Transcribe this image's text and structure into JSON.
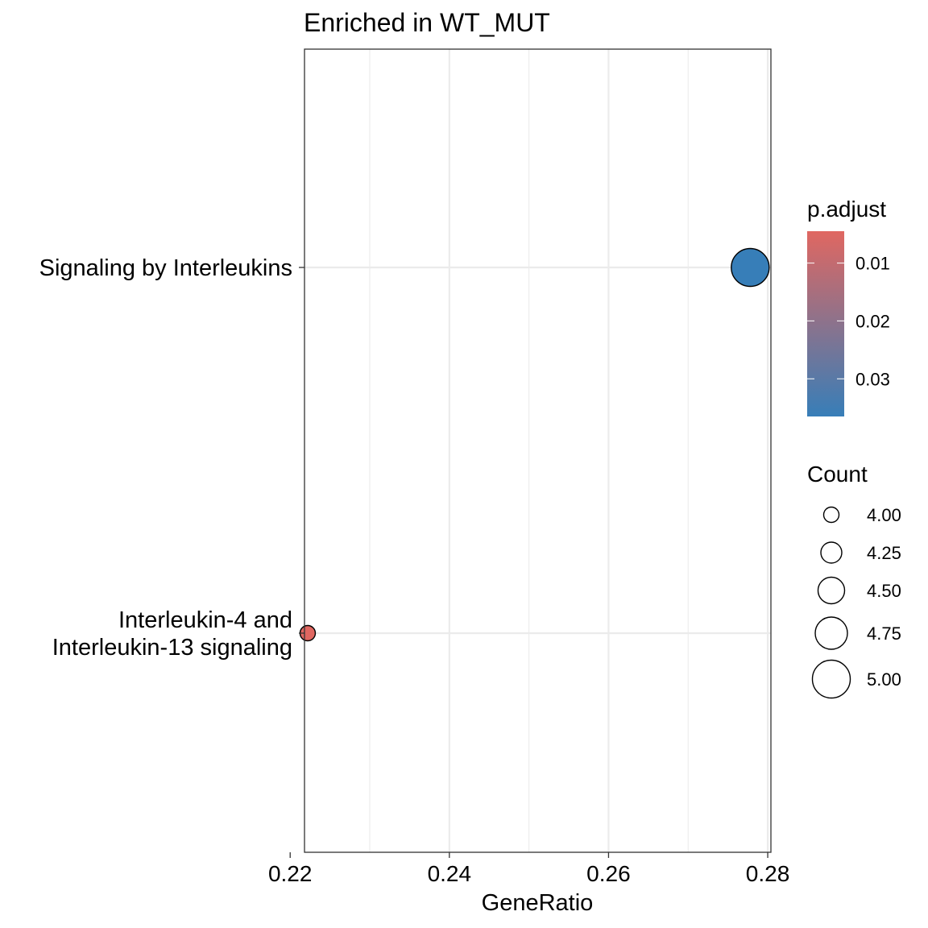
{
  "chart_data": {
    "type": "scatter",
    "title": "Enriched in WT_MUT",
    "xlabel": "GeneRatio",
    "ylabel": "",
    "xlim": [
      0.2218,
      0.2804
    ],
    "x_ticks": [
      {
        "value": 0.22,
        "label": "0.22"
      },
      {
        "value": 0.24,
        "label": "0.24"
      },
      {
        "value": 0.26,
        "label": "0.26"
      },
      {
        "value": 0.28,
        "label": "0.28"
      }
    ],
    "categories": [
      {
        "lines": [
          "Signaling by Interleukins"
        ]
      },
      {
        "lines": [
          "Interleukin-4 and",
          "Interleukin-13 signaling"
        ]
      }
    ],
    "points": [
      {
        "category_index": 0,
        "x": 0.2778,
        "count": 5,
        "p_adjust": 0.0365,
        "color": "#377EB8"
      },
      {
        "category_index": 1,
        "x": 0.2222,
        "count": 4,
        "p_adjust": 0.0045,
        "color": "#E06761"
      }
    ],
    "grid": true,
    "legend_position": "right",
    "color_legend": {
      "title": "p.adjust",
      "low_color": "#E06761",
      "high_color": "#377EB8",
      "range": [
        0.0045,
        0.0365
      ],
      "ticks": [
        {
          "value": 0.01,
          "label": "0.01"
        },
        {
          "value": 0.02,
          "label": "0.02"
        },
        {
          "value": 0.03,
          "label": "0.03"
        }
      ]
    },
    "size_legend": {
      "title": "Count",
      "entries": [
        {
          "value": 4.0,
          "label": "4.00"
        },
        {
          "value": 4.25,
          "label": "4.25"
        },
        {
          "value": 4.5,
          "label": "4.50"
        },
        {
          "value": 4.75,
          "label": "4.75"
        },
        {
          "value": 5.0,
          "label": "5.00"
        }
      ]
    }
  }
}
